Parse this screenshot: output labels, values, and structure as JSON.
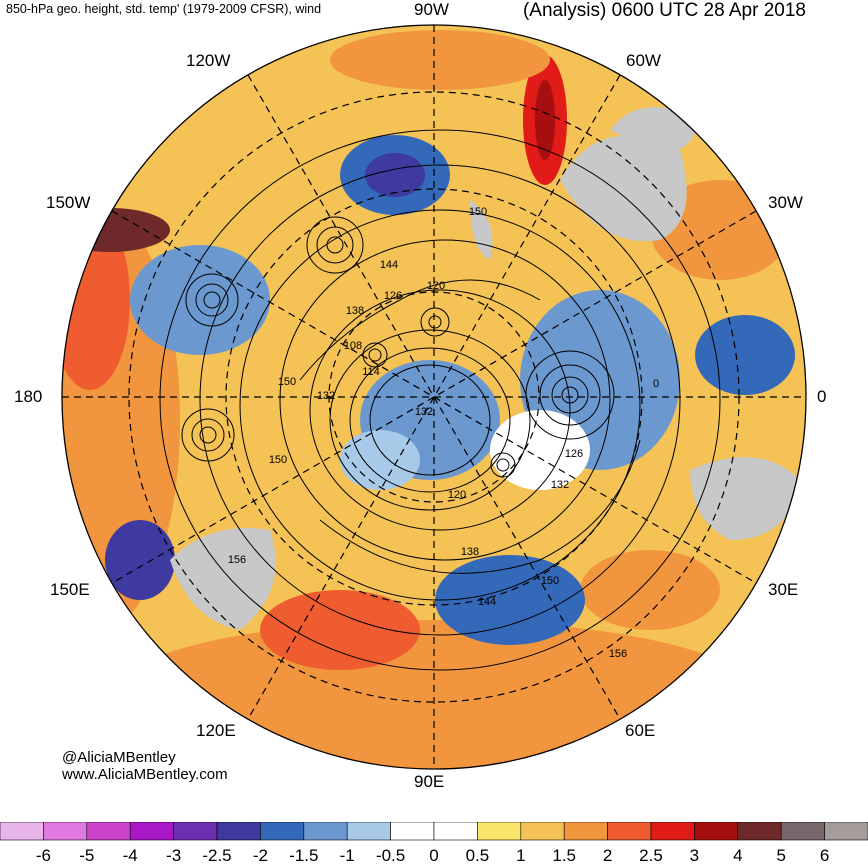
{
  "header": {
    "title_left": "850-hPa geo. height, std. temp' (1979-2009 CFSR), wind",
    "title_right": "(Analysis) 0600 UTC 28 Apr 2018"
  },
  "map": {
    "projection": "north-polar-stereographic",
    "longitude_labels": {
      "lon_90w": "90W",
      "lon_120w": "120W",
      "lon_60w": "60W",
      "lon_150w": "150W",
      "lon_30w": "30W",
      "lon_180": "180",
      "lon_0": "0",
      "lon_150e": "150E",
      "lon_30e": "30E",
      "lon_120e": "120E",
      "lon_60e": "60E",
      "lon_90e": "90E"
    },
    "contour_labels": [
      "150",
      "144",
      "120",
      "126",
      "138",
      "108",
      "114",
      "150",
      "132",
      "132",
      "0",
      "150",
      "126",
      "132",
      "120",
      "138",
      "156",
      "150",
      "144",
      "156"
    ],
    "land_color": "#c8c8c8",
    "contour_color": "#000000"
  },
  "credit": {
    "handle": "@AliciaMBentley",
    "url": "www.AliciaMBentley.com"
  },
  "colorbar": {
    "labels": [
      "-6",
      "-5",
      "-4",
      "-3",
      "-2.5",
      "-2",
      "-1.5",
      "-1",
      "-0.5",
      "0",
      "0.5",
      "1",
      "1.5",
      "2",
      "2.5",
      "3",
      "4",
      "5",
      "6"
    ],
    "colors": [
      "#e9b4e9",
      "#e07ae0",
      "#cc44cc",
      "#a818c6",
      "#6b2fb0",
      "#3e3aa0",
      "#3468b8",
      "#6c98d0",
      "#a8cae8",
      "#ffffff",
      "#ffffff",
      "#fbe46a",
      "#f4c255",
      "#f1963e",
      "#ef5c30",
      "#e11b17",
      "#a50f0f",
      "#6e2a2a",
      "#76686a",
      "#a59c9c"
    ]
  }
}
